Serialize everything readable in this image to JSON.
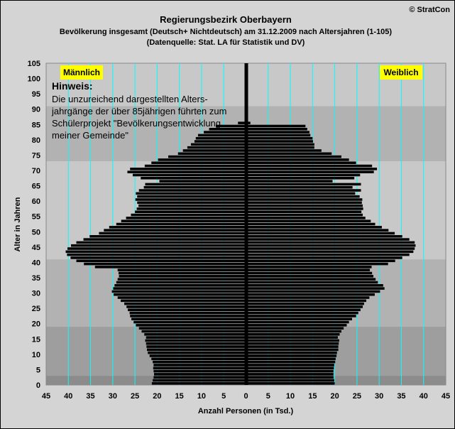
{
  "brand": "© StratCon",
  "chart_data": {
    "type": "bar",
    "orientation": "horizontal population pyramid",
    "title": "Regierungsbezirk Oberbayern",
    "subtitle": "Bevölkerung  insgesamt (Deutsch+ Nichtdeutsch) am 31.12.2009 nach Altersjahren (1-105)",
    "source": "(Datenquelle: Stat. LA für Statistik und DV)",
    "xlabel": "Anzahl Personen (in Tsd.)",
    "ylabel": "Alter in Jahren",
    "xlim": [
      -45,
      45
    ],
    "ylim": [
      0,
      105
    ],
    "x_ticks": [
      45,
      40,
      35,
      30,
      25,
      20,
      15,
      10,
      5,
      0,
      5,
      10,
      15,
      20,
      25,
      30,
      35,
      40,
      45
    ],
    "y_ticks": [
      0,
      5,
      10,
      15,
      20,
      25,
      30,
      35,
      40,
      45,
      50,
      55,
      60,
      65,
      70,
      75,
      80,
      85,
      90,
      95,
      100,
      105
    ],
    "grid": true,
    "legend": {
      "male": "Männlich",
      "female": "Weiblich"
    },
    "note_title": "Hinweis:",
    "note_lines": [
      "Die unzureichend dargestellten Alters-",
      "jahrgänge der über 85jährigen führten zum",
      "Schülerprojekt \"Bevölkerungsentwicklung",
      "meiner Gemeinde\""
    ],
    "ages": [
      0,
      1,
      2,
      3,
      4,
      5,
      6,
      7,
      8,
      9,
      10,
      11,
      12,
      13,
      14,
      15,
      16,
      17,
      18,
      19,
      20,
      21,
      22,
      23,
      24,
      25,
      26,
      27,
      28,
      29,
      30,
      31,
      32,
      33,
      34,
      35,
      36,
      37,
      38,
      39,
      40,
      41,
      42,
      43,
      44,
      45,
      46,
      47,
      48,
      49,
      50,
      51,
      52,
      53,
      54,
      55,
      56,
      57,
      58,
      59,
      60,
      61,
      62,
      63,
      64,
      65,
      66,
      67,
      68,
      69,
      70,
      71,
      72,
      73,
      74,
      75,
      76,
      77,
      78,
      79,
      80,
      81,
      82,
      83,
      84,
      85,
      86,
      87,
      88,
      89,
      90,
      91,
      92,
      93,
      94,
      95,
      96,
      97,
      98,
      99,
      100,
      101,
      102,
      103,
      104
    ],
    "series": [
      {
        "name": "Männlich",
        "values": [
          21.2,
          21.0,
          20.8,
          20.7,
          20.8,
          20.9,
          20.8,
          21.0,
          21.3,
          21.7,
          22.1,
          22.3,
          22.4,
          22.5,
          22.7,
          22.5,
          22.9,
          23.5,
          24.1,
          24.8,
          25.3,
          25.8,
          26.1,
          26.2,
          26.6,
          26.9,
          27.4,
          28.2,
          28.9,
          29.8,
          30.2,
          29.9,
          29.6,
          29.2,
          28.9,
          28.6,
          28.7,
          28.9,
          34.0,
          36.5,
          38.2,
          39.5,
          40.3,
          40.6,
          40.2,
          39.4,
          38.2,
          36.6,
          35.2,
          33.1,
          32.0,
          30.8,
          29.2,
          28.1,
          27.0,
          25.9,
          25.0,
          24.6,
          24.2,
          24.5,
          24.9,
          24.5,
          24.8,
          24.1,
          23.0,
          22.7,
          19.5,
          23.7,
          25.5,
          26.7,
          26.1,
          22.8,
          21.3,
          19.8,
          17.5,
          15.3,
          14.2,
          13.2,
          12.4,
          11.6,
          11.3,
          10.8,
          9.5,
          8.3,
          6.8,
          1.8,
          0.3,
          0.3,
          0.2,
          0.2,
          0.1,
          0.1,
          0.1,
          0.1,
          0,
          0,
          0,
          0,
          0,
          0,
          0,
          0,
          0,
          0,
          0
        ]
      },
      {
        "name": "Weiblich",
        "values": [
          20.0,
          19.9,
          19.7,
          19.7,
          19.7,
          19.8,
          19.9,
          20.1,
          20.2,
          20.4,
          20.5,
          20.8,
          20.8,
          20.9,
          21.0,
          20.7,
          21.1,
          21.5,
          22.0,
          22.7,
          23.2,
          23.9,
          24.8,
          25.3,
          25.8,
          26.3,
          26.6,
          27.1,
          27.8,
          29.0,
          30.2,
          31.2,
          30.9,
          29.7,
          29.2,
          28.7,
          28.4,
          27.9,
          28.3,
          32.0,
          33.6,
          35.2,
          36.8,
          37.7,
          38.0,
          38.2,
          38.0,
          36.8,
          35.2,
          33.5,
          32.1,
          30.6,
          29.1,
          28.1,
          26.9,
          26.3,
          26.0,
          26.4,
          26.3,
          26.1,
          26.2,
          25.6,
          24.6,
          25.9,
          24.0,
          25.9,
          19.5,
          24.4,
          25.7,
          28.8,
          29.5,
          28.4,
          24.8,
          23.2,
          21.5,
          19.3,
          17.0,
          15.4,
          15.4,
          15.1,
          15.0,
          14.5,
          14.3,
          13.8,
          13.4,
          1.0,
          0.3,
          0.3,
          0.2,
          0.2,
          0.1,
          0.1,
          0.1,
          0.1,
          0,
          0,
          0,
          0,
          0,
          0,
          0,
          0,
          0,
          0,
          0
        ]
      }
    ],
    "colors": {
      "bars": "#000000",
      "plot_bands": [
        "#c8c8c8",
        "#b2b2b2",
        "#9e9e9e",
        "#8c8c8c"
      ],
      "gridlines": "#00ffff",
      "center_axis": "#000000",
      "legend_bg": "#ffff00",
      "male_label": "#1a1aa0",
      "female_label": "#ff0000",
      "page_bg": "#d4d4d4"
    }
  }
}
